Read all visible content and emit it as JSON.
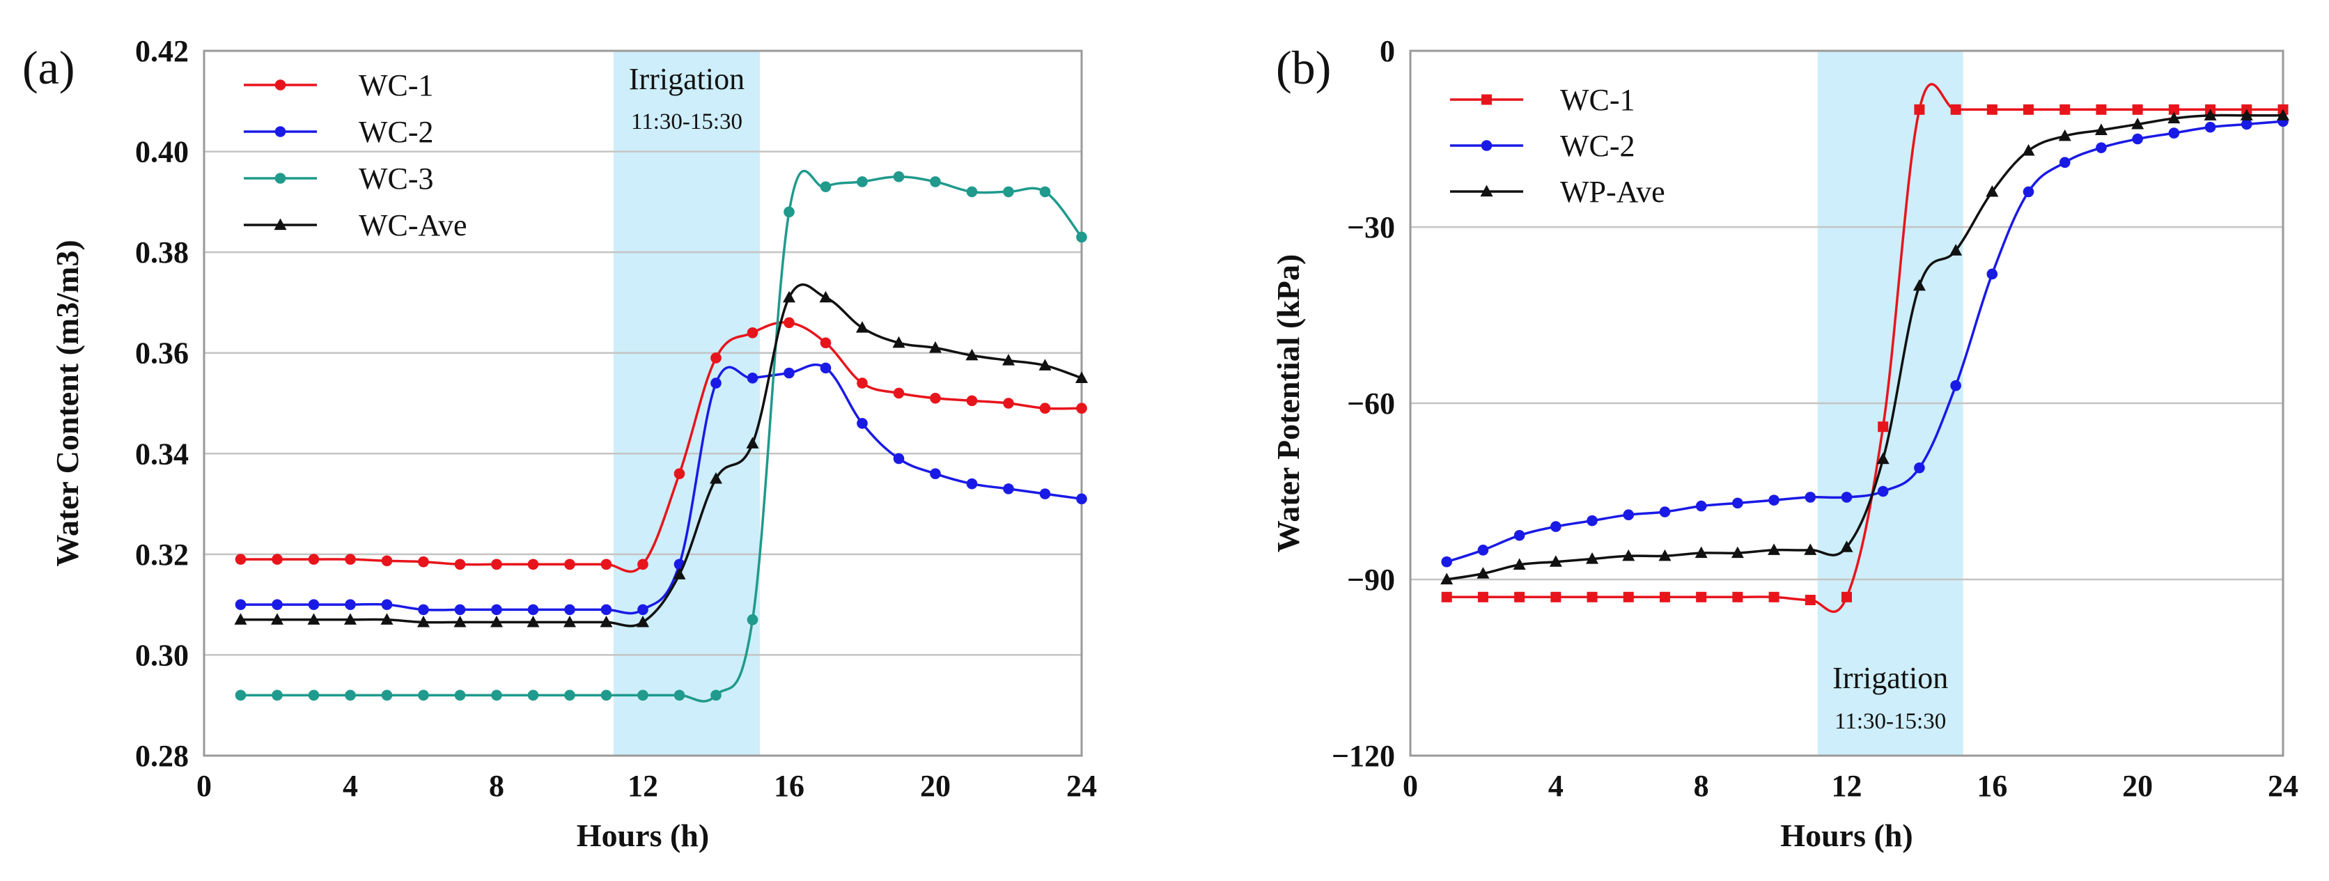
{
  "chart_data": [
    {
      "type": "line",
      "panel_label": "(a)",
      "xlabel": "Hours (h)",
      "ylabel": "Water Content (m3/m3)",
      "xlim": [
        0,
        24
      ],
      "ylim": [
        0.28,
        0.42
      ],
      "xticks": [
        0,
        4,
        8,
        12,
        16,
        20,
        24
      ],
      "yticks": [
        0.28,
        0.3,
        0.32,
        0.34,
        0.36,
        0.38,
        0.4,
        0.42
      ],
      "ytick_labels": [
        "0.28",
        "0.30",
        "0.32",
        "0.34",
        "0.36",
        "0.38",
        "0.40",
        "0.42"
      ],
      "grid": true,
      "legend_position": "top-left",
      "annotation": {
        "title": "Irrigation",
        "time": "11:30-15:30",
        "x_range": [
          11.2,
          15.2
        ],
        "position": "top"
      },
      "series": [
        {
          "name": "WC-1",
          "color": "#e8141c",
          "marker": "circle",
          "x": [
            1,
            2,
            3,
            4,
            5,
            6,
            7,
            8,
            9,
            10,
            11,
            12,
            13,
            14,
            15,
            16,
            17,
            18,
            19,
            20,
            21,
            22,
            23,
            24
          ],
          "y": [
            0.319,
            0.319,
            0.319,
            0.319,
            0.3187,
            0.3185,
            0.318,
            0.318,
            0.318,
            0.318,
            0.318,
            0.318,
            0.336,
            0.359,
            0.364,
            0.366,
            0.362,
            0.354,
            0.352,
            0.351,
            0.3505,
            0.35,
            0.349,
            0.349
          ]
        },
        {
          "name": "WC-2",
          "color": "#1a1ae6",
          "marker": "circle",
          "x": [
            1,
            2,
            3,
            4,
            5,
            6,
            7,
            8,
            9,
            10,
            11,
            12,
            13,
            14,
            15,
            16,
            17,
            18,
            19,
            20,
            21,
            22,
            23,
            24
          ],
          "y": [
            0.31,
            0.31,
            0.31,
            0.31,
            0.31,
            0.309,
            0.309,
            0.309,
            0.309,
            0.309,
            0.309,
            0.309,
            0.318,
            0.354,
            0.355,
            0.356,
            0.357,
            0.346,
            0.339,
            0.336,
            0.334,
            0.333,
            0.332,
            0.331
          ]
        },
        {
          "name": "WC-3",
          "color": "#1f9a8c",
          "marker": "circle",
          "x": [
            1,
            2,
            3,
            4,
            5,
            6,
            7,
            8,
            9,
            10,
            11,
            12,
            13,
            14,
            15,
            16,
            17,
            18,
            19,
            20,
            21,
            22,
            23,
            24
          ],
          "y": [
            0.292,
            0.292,
            0.292,
            0.292,
            0.292,
            0.292,
            0.292,
            0.292,
            0.292,
            0.292,
            0.292,
            0.292,
            0.292,
            0.292,
            0.307,
            0.388,
            0.393,
            0.394,
            0.395,
            0.394,
            0.392,
            0.392,
            0.392,
            0.383
          ]
        },
        {
          "name": "WC-Ave",
          "color": "#111111",
          "marker": "triangle",
          "x": [
            1,
            2,
            3,
            4,
            5,
            6,
            7,
            8,
            9,
            10,
            11,
            12,
            13,
            14,
            15,
            16,
            17,
            18,
            19,
            20,
            21,
            22,
            23,
            24
          ],
          "y": [
            0.307,
            0.307,
            0.307,
            0.307,
            0.307,
            0.3065,
            0.3065,
            0.3065,
            0.3065,
            0.3065,
            0.3065,
            0.3065,
            0.316,
            0.335,
            0.342,
            0.371,
            0.371,
            0.365,
            0.362,
            0.361,
            0.3595,
            0.3585,
            0.3575,
            0.355
          ]
        }
      ]
    },
    {
      "type": "line",
      "panel_label": "(b)",
      "xlabel": "Hours (h)",
      "ylabel": "Water Potential (kPa)",
      "xlim": [
        0,
        24
      ],
      "ylim": [
        -120,
        0
      ],
      "xticks": [
        0,
        4,
        8,
        12,
        16,
        20,
        24
      ],
      "yticks": [
        -120,
        -90,
        -60,
        -30,
        0
      ],
      "ytick_labels": [
        "−120",
        "−90",
        "−60",
        "−30",
        "0"
      ],
      "grid": true,
      "legend_position": "top-left",
      "annotation": {
        "title": "Irrigation",
        "time": "11:30-15:30",
        "x_range": [
          11.2,
          15.2
        ],
        "position": "bottom"
      },
      "series": [
        {
          "name": "WC-1",
          "color": "#e8141c",
          "marker": "square",
          "x": [
            1,
            2,
            3,
            4,
            5,
            6,
            7,
            8,
            9,
            10,
            11,
            12,
            13,
            14,
            15,
            16,
            17,
            18,
            19,
            20,
            21,
            22,
            23,
            24
          ],
          "y": [
            -93,
            -93,
            -93,
            -93,
            -93,
            -93,
            -93,
            -93,
            -93,
            -93,
            -93.5,
            -93,
            -64,
            -10,
            -10,
            -10,
            -10,
            -10,
            -10,
            -10,
            -10,
            -10,
            -10,
            -10
          ]
        },
        {
          "name": "WC-2",
          "color": "#1a1ae6",
          "marker": "circle",
          "x": [
            1,
            2,
            3,
            4,
            5,
            6,
            7,
            8,
            9,
            10,
            11,
            12,
            13,
            14,
            15,
            16,
            17,
            18,
            19,
            20,
            21,
            22,
            23,
            24
          ],
          "y": [
            -87,
            -85,
            -82.5,
            -81,
            -80,
            -79,
            -78.5,
            -77.5,
            -77,
            -76.5,
            -76,
            -76,
            -75,
            -71,
            -57,
            -38,
            -24,
            -19,
            -16.5,
            -15,
            -14,
            -13,
            -12.5,
            -12
          ]
        },
        {
          "name": "WP-Ave",
          "color": "#111111",
          "marker": "triangle",
          "x": [
            1,
            2,
            3,
            4,
            5,
            6,
            7,
            8,
            9,
            10,
            11,
            12,
            13,
            14,
            15,
            16,
            17,
            18,
            19,
            20,
            21,
            22,
            23,
            24
          ],
          "y": [
            -90,
            -89,
            -87.5,
            -87,
            -86.5,
            -86,
            -86,
            -85.5,
            -85.5,
            -85,
            -85,
            -84.5,
            -69.5,
            -40,
            -34,
            -24,
            -17,
            -14.5,
            -13.5,
            -12.5,
            -11.5,
            -11,
            -11,
            -11
          ]
        }
      ]
    }
  ]
}
